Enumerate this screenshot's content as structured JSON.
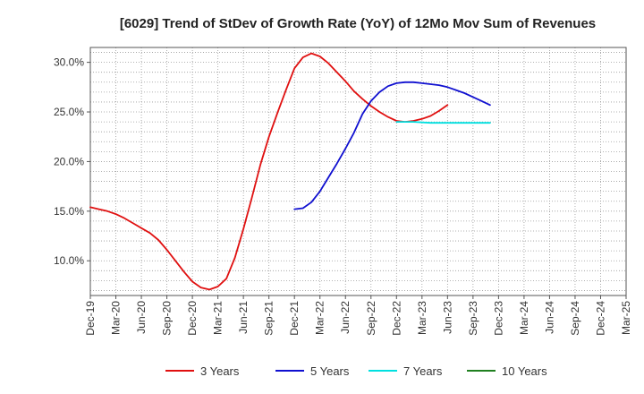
{
  "chart_data": {
    "type": "line",
    "title": "[6029]  Trend of StDev of Growth Rate (YoY) of 12Mo Mov Sum of Revenues",
    "xlabel": "",
    "ylabel": "",
    "x_ticks": [
      "Dec-19",
      "Mar-20",
      "Jun-20",
      "Sep-20",
      "Dec-20",
      "Mar-21",
      "Jun-21",
      "Sep-21",
      "Dec-21",
      "Mar-22",
      "Jun-22",
      "Sep-22",
      "Dec-22",
      "Mar-23",
      "Jun-23",
      "Sep-23",
      "Dec-23",
      "Mar-24",
      "Jun-24",
      "Sep-24",
      "Dec-24",
      "Mar-25"
    ],
    "y_ticks": [
      "10.0%",
      "15.0%",
      "20.0%",
      "25.0%",
      "30.0%"
    ],
    "y_tick_values": [
      10,
      15,
      20,
      25,
      30
    ],
    "ylim": [
      6.5,
      31.5
    ],
    "grid": true,
    "legend_position": "bottom",
    "series": [
      {
        "name": "3 Years",
        "color": "#e01010",
        "points": [
          [
            0,
            15.4
          ],
          [
            1,
            15.2
          ],
          [
            2,
            15.0
          ],
          [
            3,
            14.7
          ],
          [
            4,
            14.3
          ],
          [
            5,
            13.8
          ],
          [
            6,
            13.3
          ],
          [
            7,
            12.8
          ],
          [
            8,
            12.1
          ],
          [
            9,
            11.1
          ],
          [
            10,
            10.0
          ],
          [
            11,
            8.9
          ],
          [
            12,
            7.9
          ],
          [
            13,
            7.3
          ],
          [
            14,
            7.1
          ],
          [
            15,
            7.4
          ],
          [
            16,
            8.2
          ],
          [
            17,
            10.3
          ],
          [
            18,
            13.2
          ],
          [
            19,
            16.4
          ],
          [
            20,
            19.7
          ],
          [
            21,
            22.5
          ],
          [
            22,
            24.9
          ],
          [
            23,
            27.2
          ],
          [
            24,
            29.4
          ],
          [
            25,
            30.5
          ],
          [
            26,
            30.9
          ],
          [
            27,
            30.6
          ],
          [
            28,
            29.9
          ],
          [
            29,
            29.0
          ],
          [
            30,
            28.1
          ],
          [
            31,
            27.1
          ],
          [
            32,
            26.3
          ],
          [
            33,
            25.6
          ],
          [
            34,
            25.0
          ],
          [
            35,
            24.5
          ],
          [
            36,
            24.1
          ],
          [
            37,
            24.0
          ],
          [
            38,
            24.1
          ],
          [
            39,
            24.3
          ],
          [
            40,
            24.6
          ],
          [
            41,
            25.1
          ],
          [
            42,
            25.7
          ]
        ]
      },
      {
        "name": "5 Years",
        "color": "#1010d0",
        "points": [
          [
            24,
            15.2
          ],
          [
            25,
            15.3
          ],
          [
            26,
            15.9
          ],
          [
            27,
            17.0
          ],
          [
            28,
            18.4
          ],
          [
            29,
            19.8
          ],
          [
            30,
            21.3
          ],
          [
            31,
            22.9
          ],
          [
            32,
            24.8
          ],
          [
            33,
            26.1
          ],
          [
            34,
            27.0
          ],
          [
            35,
            27.6
          ],
          [
            36,
            27.9
          ],
          [
            37,
            28.0
          ],
          [
            38,
            28.0
          ],
          [
            39,
            27.9
          ],
          [
            40,
            27.8
          ],
          [
            41,
            27.7
          ],
          [
            42,
            27.5
          ],
          [
            43,
            27.2
          ],
          [
            44,
            26.9
          ],
          [
            45,
            26.5
          ],
          [
            46,
            26.1
          ],
          [
            47,
            25.7
          ]
        ]
      },
      {
        "name": "7 Years",
        "color": "#00e0e0",
        "points": [
          [
            36,
            24.0
          ],
          [
            38,
            24.0
          ],
          [
            40,
            23.9
          ],
          [
            42,
            23.9
          ],
          [
            44,
            23.9
          ],
          [
            47,
            23.9
          ]
        ]
      },
      {
        "name": "10 Years",
        "color": "#208020",
        "points": []
      }
    ]
  }
}
